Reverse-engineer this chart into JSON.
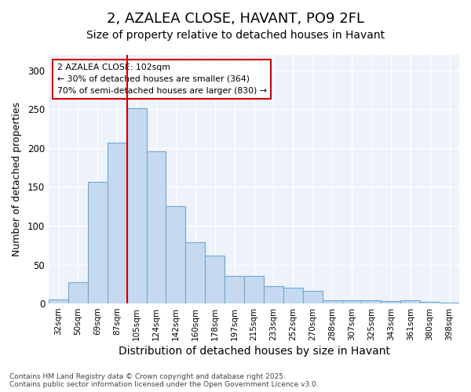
{
  "title1": "2, AZALEA CLOSE, HAVANT, PO9 2FL",
  "title2": "Size of property relative to detached houses in Havant",
  "xlabel": "Distribution of detached houses by size in Havant",
  "ylabel": "Number of detached properties",
  "categories": [
    "32sqm",
    "50sqm",
    "69sqm",
    "87sqm",
    "105sqm",
    "124sqm",
    "142sqm",
    "160sqm",
    "178sqm",
    "197sqm",
    "215sqm",
    "233sqm",
    "252sqm",
    "270sqm",
    "288sqm",
    "307sqm",
    "325sqm",
    "343sqm",
    "361sqm",
    "380sqm",
    "398sqm"
  ],
  "values": [
    5,
    27,
    157,
    207,
    251,
    196,
    125,
    79,
    62,
    35,
    35,
    22,
    20,
    16,
    4,
    4,
    4,
    3,
    4,
    2,
    1
  ],
  "bar_color": "#c5d9f0",
  "bar_edge_color": "#6fa8d4",
  "vline_x_index": 4,
  "vline_color": "#cc0000",
  "annotation_text": "2 AZALEA CLOSE: 102sqm\n← 30% of detached houses are smaller (364)\n70% of semi-detached houses are larger (830) →",
  "annotation_box_edgecolor": "#cc0000",
  "annotation_box_facecolor": "#ffffff",
  "background_color": "#ffffff",
  "plot_bg_color": "#eef2fb",
  "grid_color": "#ffffff",
  "footer_text": "Contains HM Land Registry data © Crown copyright and database right 2025.\nContains public sector information licensed under the Open Government Licence v3.0.",
  "ylim": [
    0,
    320
  ],
  "yticks": [
    0,
    50,
    100,
    150,
    200,
    250,
    300
  ],
  "title1_fontsize": 13,
  "title2_fontsize": 10,
  "xlabel_fontsize": 10,
  "ylabel_fontsize": 9
}
